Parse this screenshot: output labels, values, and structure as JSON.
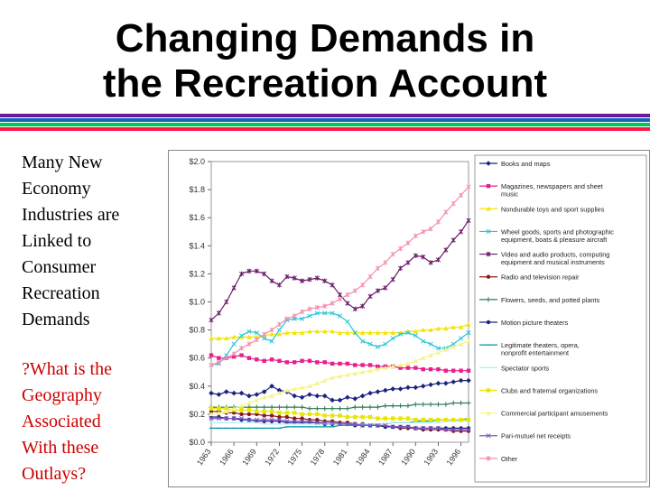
{
  "title_line1": "Changing Demands in",
  "title_line2": "the Recreation Account",
  "rules": [
    "#6a1b9a",
    "#1565c0",
    "#00c853",
    "#ff1744"
  ],
  "body": {
    "para1": "Many New\nEconomy\nIndustries are\nLinked to\nConsumer\nRecreation\nDemands",
    "para2": "?What is the\nGeography\nAssociated\nWith these\nOutlays?"
  },
  "chart_data": {
    "type": "line",
    "x": [
      1963,
      1964,
      1965,
      1966,
      1967,
      1968,
      1969,
      1970,
      1971,
      1972,
      1973,
      1974,
      1975,
      1976,
      1977,
      1978,
      1979,
      1980,
      1981,
      1982,
      1983,
      1984,
      1985,
      1986,
      1987,
      1988,
      1989,
      1990,
      1991,
      1992,
      1993,
      1994,
      1995,
      1996,
      1997
    ],
    "xticks": [
      1963,
      1966,
      1969,
      1972,
      1975,
      1978,
      1981,
      1984,
      1987,
      1990,
      1993,
      1996
    ],
    "ylim": [
      0,
      2.0
    ],
    "yticks": [
      "$0.0",
      "$0.2",
      "$0.4",
      "$0.6",
      "$0.8",
      "$1.0",
      "$1.2",
      "$1.4",
      "$1.6",
      "$1.8",
      "$2.0"
    ],
    "grid": false,
    "legend_position": "right",
    "series": [
      {
        "name": "Books and maps",
        "color": "#1a237e",
        "marker": "diamond",
        "values": [
          0.35,
          0.34,
          0.36,
          0.35,
          0.35,
          0.33,
          0.34,
          0.36,
          0.4,
          0.37,
          0.36,
          0.33,
          0.32,
          0.34,
          0.33,
          0.33,
          0.3,
          0.3,
          0.32,
          0.31,
          0.33,
          0.35,
          0.36,
          0.37,
          0.38,
          0.38,
          0.39,
          0.39,
          0.4,
          0.41,
          0.42,
          0.42,
          0.43,
          0.44,
          0.44
        ]
      },
      {
        "name": "Magazines, newspapers and sheet music",
        "color": "#e91e8c",
        "marker": "square",
        "values": [
          0.62,
          0.6,
          0.6,
          0.61,
          0.62,
          0.6,
          0.59,
          0.58,
          0.59,
          0.58,
          0.57,
          0.57,
          0.58,
          0.58,
          0.57,
          0.57,
          0.56,
          0.56,
          0.56,
          0.55,
          0.55,
          0.55,
          0.54,
          0.54,
          0.54,
          0.53,
          0.53,
          0.53,
          0.52,
          0.52,
          0.52,
          0.51,
          0.51,
          0.51,
          0.51
        ]
      },
      {
        "name": "Nondurable toys and sport supplies",
        "color": "#f4e400",
        "marker": "triangle",
        "values": [
          0.74,
          0.74,
          0.74,
          0.75,
          0.75,
          0.75,
          0.75,
          0.76,
          0.77,
          0.77,
          0.78,
          0.78,
          0.78,
          0.79,
          0.79,
          0.79,
          0.79,
          0.78,
          0.78,
          0.78,
          0.78,
          0.78,
          0.78,
          0.78,
          0.78,
          0.78,
          0.79,
          0.79,
          0.8,
          0.8,
          0.81,
          0.81,
          0.82,
          0.82,
          0.84
        ]
      },
      {
        "name": "Wheel goods, sports and photographic equipment, boats & pleasure aircraft",
        "color": "#26c6da",
        "marker": "x",
        "values": [
          0.55,
          0.56,
          0.62,
          0.7,
          0.76,
          0.79,
          0.78,
          0.74,
          0.72,
          0.8,
          0.87,
          0.88,
          0.88,
          0.9,
          0.92,
          0.92,
          0.92,
          0.9,
          0.86,
          0.78,
          0.72,
          0.7,
          0.68,
          0.7,
          0.74,
          0.77,
          0.78,
          0.76,
          0.72,
          0.7,
          0.67,
          0.67,
          0.7,
          0.74,
          0.78
        ]
      },
      {
        "name": "Video and audio products, computing equipment and musical instruments",
        "color": "#6a1b6a",
        "marker": "star",
        "values": [
          0.87,
          0.92,
          1.0,
          1.1,
          1.2,
          1.22,
          1.22,
          1.2,
          1.15,
          1.12,
          1.18,
          1.17,
          1.15,
          1.16,
          1.17,
          1.15,
          1.12,
          1.05,
          0.99,
          0.95,
          0.97,
          1.04,
          1.08,
          1.1,
          1.16,
          1.24,
          1.28,
          1.33,
          1.32,
          1.28,
          1.3,
          1.37,
          1.44,
          1.5,
          1.58
        ]
      },
      {
        "name": "Radio and television repair",
        "color": "#8b1a1a",
        "marker": "circle",
        "values": [
          0.22,
          0.22,
          0.21,
          0.21,
          0.2,
          0.2,
          0.2,
          0.19,
          0.19,
          0.18,
          0.18,
          0.17,
          0.17,
          0.16,
          0.16,
          0.15,
          0.15,
          0.14,
          0.14,
          0.13,
          0.13,
          0.12,
          0.12,
          0.11,
          0.11,
          0.1,
          0.1,
          0.1,
          0.09,
          0.09,
          0.09,
          0.09,
          0.08,
          0.08,
          0.08
        ]
      },
      {
        "name": "Flowers, seeds, and potted plants",
        "color": "#2e7d5a",
        "marker": "plus",
        "values": [
          0.25,
          0.25,
          0.25,
          0.25,
          0.25,
          0.25,
          0.25,
          0.25,
          0.25,
          0.25,
          0.25,
          0.25,
          0.25,
          0.24,
          0.24,
          0.24,
          0.24,
          0.24,
          0.24,
          0.25,
          0.25,
          0.25,
          0.25,
          0.26,
          0.26,
          0.26,
          0.26,
          0.27,
          0.27,
          0.27,
          0.27,
          0.27,
          0.28,
          0.28,
          0.28
        ]
      },
      {
        "name": "Motion picture theaters",
        "color": "#1a237e",
        "marker": "circle",
        "values": [
          0.18,
          0.18,
          0.17,
          0.17,
          0.16,
          0.16,
          0.15,
          0.15,
          0.15,
          0.15,
          0.14,
          0.14,
          0.14,
          0.14,
          0.14,
          0.13,
          0.13,
          0.13,
          0.13,
          0.12,
          0.12,
          0.12,
          0.12,
          0.11,
          0.11,
          0.11,
          0.11,
          0.1,
          0.1,
          0.1,
          0.1,
          0.1,
          0.1,
          0.1,
          0.1
        ]
      },
      {
        "name": "Legitimate theaters, opera, nonprofit entertainment",
        "color": "#0097a7",
        "marker": "dash",
        "values": [
          0.1,
          0.1,
          0.1,
          0.1,
          0.1,
          0.1,
          0.1,
          0.1,
          0.1,
          0.1,
          0.11,
          0.11,
          0.11,
          0.11,
          0.11,
          0.11,
          0.11,
          0.12,
          0.12,
          0.12,
          0.12,
          0.13,
          0.13,
          0.13,
          0.14,
          0.14,
          0.14,
          0.15,
          0.15,
          0.15,
          0.16,
          0.16,
          0.16,
          0.16,
          0.17
        ]
      },
      {
        "name": "Spectator sports",
        "color": "#b2ebf2",
        "marker": "dash",
        "values": [
          0.14,
          0.14,
          0.14,
          0.14,
          0.14,
          0.14,
          0.14,
          0.13,
          0.13,
          0.13,
          0.13,
          0.13,
          0.13,
          0.13,
          0.13,
          0.13,
          0.13,
          0.13,
          0.13,
          0.13,
          0.13,
          0.13,
          0.13,
          0.13,
          0.14,
          0.14,
          0.14,
          0.14,
          0.14,
          0.14,
          0.14,
          0.15,
          0.15,
          0.15,
          0.15
        ]
      },
      {
        "name": "Clubs and fraternal organizations",
        "color": "#e6e600",
        "marker": "square",
        "values": [
          0.24,
          0.24,
          0.24,
          0.23,
          0.23,
          0.23,
          0.22,
          0.22,
          0.22,
          0.21,
          0.21,
          0.21,
          0.2,
          0.2,
          0.2,
          0.19,
          0.19,
          0.19,
          0.18,
          0.18,
          0.18,
          0.18,
          0.17,
          0.17,
          0.17,
          0.17,
          0.17,
          0.16,
          0.16,
          0.16,
          0.16,
          0.16,
          0.16,
          0.16,
          0.16
        ]
      },
      {
        "name": "Commercial participant amusements",
        "color": "#f5f58a",
        "marker": "triangle",
        "values": [
          0.2,
          0.21,
          0.22,
          0.24,
          0.26,
          0.28,
          0.3,
          0.32,
          0.33,
          0.35,
          0.37,
          0.38,
          0.39,
          0.4,
          0.42,
          0.44,
          0.46,
          0.47,
          0.48,
          0.49,
          0.5,
          0.51,
          0.52,
          0.53,
          0.54,
          0.55,
          0.56,
          0.58,
          0.6,
          0.62,
          0.64,
          0.66,
          0.68,
          0.7,
          0.72
        ]
      },
      {
        "name": "Pari-mutuel net receipts",
        "color": "#7e57c2",
        "marker": "x",
        "values": [
          0.17,
          0.17,
          0.17,
          0.17,
          0.17,
          0.16,
          0.16,
          0.16,
          0.16,
          0.16,
          0.15,
          0.15,
          0.15,
          0.15,
          0.14,
          0.14,
          0.14,
          0.13,
          0.13,
          0.13,
          0.12,
          0.12,
          0.12,
          0.12,
          0.11,
          0.11,
          0.11,
          0.1,
          0.1,
          0.1,
          0.1,
          0.09,
          0.09,
          0.09,
          0.09
        ]
      },
      {
        "name": "Other",
        "color": "#f48fb1",
        "marker": "star",
        "values": [
          0.55,
          0.57,
          0.6,
          0.63,
          0.67,
          0.7,
          0.73,
          0.77,
          0.8,
          0.84,
          0.88,
          0.9,
          0.93,
          0.95,
          0.96,
          0.97,
          0.99,
          1.02,
          1.05,
          1.08,
          1.12,
          1.18,
          1.24,
          1.28,
          1.34,
          1.38,
          1.42,
          1.47,
          1.5,
          1.52,
          1.57,
          1.64,
          1.7,
          1.76,
          1.82
        ]
      }
    ]
  }
}
